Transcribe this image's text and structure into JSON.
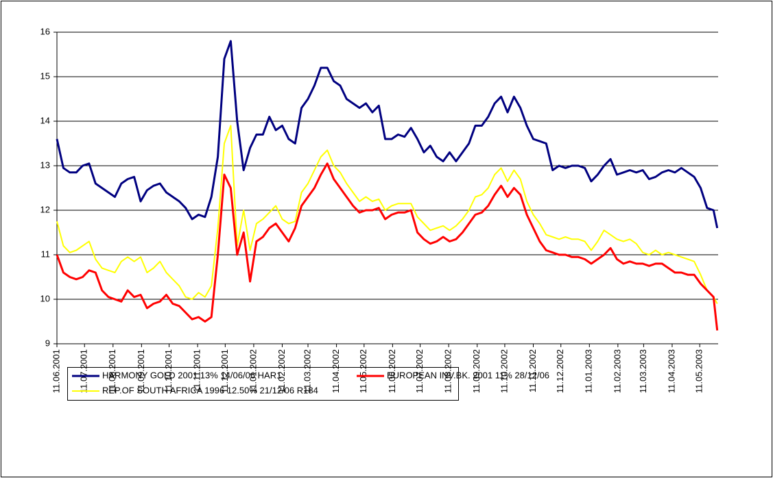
{
  "chart_data": {
    "type": "line",
    "x": [
      "2001-06-11",
      "2001-06-18",
      "2001-06-25",
      "2001-07-02",
      "2001-07-09",
      "2001-07-16",
      "2001-07-23",
      "2001-07-30",
      "2001-08-06",
      "2001-08-13",
      "2001-08-20",
      "2001-08-27",
      "2001-09-03",
      "2001-09-10",
      "2001-09-17",
      "2001-09-24",
      "2001-10-01",
      "2001-10-08",
      "2001-10-15",
      "2001-10-22",
      "2001-10-29",
      "2001-11-05",
      "2001-11-12",
      "2001-11-19",
      "2001-11-26",
      "2001-12-03",
      "2001-12-10",
      "2001-12-17",
      "2001-12-24",
      "2001-12-31",
      "2002-01-07",
      "2002-01-14",
      "2002-01-21",
      "2002-01-28",
      "2002-02-04",
      "2002-02-11",
      "2002-02-18",
      "2002-02-25",
      "2002-03-04",
      "2002-03-11",
      "2002-03-18",
      "2002-03-25",
      "2002-04-01",
      "2002-04-08",
      "2002-04-15",
      "2002-04-22",
      "2002-04-29",
      "2002-05-06",
      "2002-05-13",
      "2002-05-20",
      "2002-05-27",
      "2002-06-03",
      "2002-06-10",
      "2002-06-17",
      "2002-06-24",
      "2002-07-01",
      "2002-07-08",
      "2002-07-15",
      "2002-07-22",
      "2002-07-29",
      "2002-08-05",
      "2002-08-12",
      "2002-08-19",
      "2002-08-26",
      "2002-09-02",
      "2002-09-09",
      "2002-09-16",
      "2002-09-23",
      "2002-09-30",
      "2002-10-07",
      "2002-10-14",
      "2002-10-21",
      "2002-10-28",
      "2002-11-04",
      "2002-11-11",
      "2002-11-18",
      "2002-11-25",
      "2002-12-02",
      "2002-12-09",
      "2002-12-16",
      "2002-12-23",
      "2002-12-30",
      "2003-01-06",
      "2003-01-13",
      "2003-01-20",
      "2003-01-27",
      "2003-02-03",
      "2003-02-10",
      "2003-02-17",
      "2003-02-24",
      "2003-03-03",
      "2003-03-10",
      "2003-03-17",
      "2003-03-24",
      "2003-03-31",
      "2003-04-07",
      "2003-04-14",
      "2003-04-21",
      "2003-04-28",
      "2003-05-05",
      "2003-05-12",
      "2003-05-19",
      "2003-05-26",
      "2003-05-30"
    ],
    "series": [
      {
        "name": "HARMONY GOLD 2001 13% 14/06/06 HAR1",
        "color": "#000080",
        "values": [
          13.6,
          12.95,
          12.85,
          12.85,
          13.0,
          13.05,
          12.6,
          12.5,
          12.4,
          12.3,
          12.6,
          12.7,
          12.75,
          12.2,
          12.45,
          12.55,
          12.6,
          12.4,
          12.3,
          12.2,
          12.05,
          11.8,
          11.9,
          11.85,
          12.3,
          13.2,
          15.4,
          15.8,
          14.0,
          12.9,
          13.4,
          13.7,
          13.7,
          14.1,
          13.8,
          13.9,
          13.6,
          13.5,
          14.3,
          14.5,
          14.8,
          15.2,
          15.2,
          14.9,
          14.8,
          14.5,
          14.4,
          14.3,
          14.4,
          14.2,
          14.35,
          13.6,
          13.6,
          13.7,
          13.65,
          13.85,
          13.6,
          13.3,
          13.45,
          13.2,
          13.1,
          13.3,
          13.1,
          13.3,
          13.5,
          13.9,
          13.9,
          14.1,
          14.4,
          14.55,
          14.2,
          14.55,
          14.3,
          13.9,
          13.6,
          13.55,
          13.5,
          12.9,
          13.0,
          12.95,
          13.0,
          13.0,
          12.95,
          12.65,
          12.8,
          13.0,
          13.15,
          12.8,
          12.85,
          12.9,
          12.85,
          12.9,
          12.7,
          12.75,
          12.85,
          12.9,
          12.85,
          12.95,
          12.85,
          12.75,
          12.5,
          12.05,
          12.0,
          11.6
        ]
      },
      {
        "name": "EUROPEAN INV.BK. 2001 11% 28/12/06",
        "color": "#ff0000",
        "values": [
          11.0,
          10.6,
          10.5,
          10.45,
          10.5,
          10.65,
          10.6,
          10.2,
          10.05,
          10.0,
          9.95,
          10.2,
          10.05,
          10.1,
          9.8,
          9.9,
          9.95,
          10.1,
          9.9,
          9.85,
          9.7,
          9.55,
          9.6,
          9.5,
          9.6,
          11.0,
          12.8,
          12.5,
          11.0,
          11.5,
          10.4,
          11.3,
          11.4,
          11.6,
          11.7,
          11.5,
          11.3,
          11.6,
          12.1,
          12.3,
          12.5,
          12.8,
          13.05,
          12.7,
          12.5,
          12.3,
          12.1,
          11.95,
          12.0,
          12.0,
          12.05,
          11.8,
          11.9,
          11.95,
          11.95,
          12.0,
          11.5,
          11.35,
          11.25,
          11.3,
          11.4,
          11.3,
          11.35,
          11.5,
          11.7,
          11.9,
          11.95,
          12.1,
          12.35,
          12.55,
          12.3,
          12.5,
          12.35,
          11.9,
          11.6,
          11.3,
          11.1,
          11.05,
          11.0,
          11.0,
          10.95,
          10.95,
          10.9,
          10.8,
          10.9,
          11.0,
          11.15,
          10.9,
          10.8,
          10.85,
          10.8,
          10.8,
          10.75,
          10.8,
          10.8,
          10.7,
          10.6,
          10.6,
          10.55,
          10.55,
          10.35,
          10.2,
          10.05,
          9.3
        ]
      },
      {
        "name": "REP.OF SOUTH AFRICA 1996 12.50% 21/12/06 R184",
        "color": "#ffff00",
        "values": [
          11.75,
          11.2,
          11.05,
          11.1,
          11.2,
          11.3,
          10.9,
          10.7,
          10.65,
          10.6,
          10.85,
          10.95,
          10.85,
          10.95,
          10.6,
          10.7,
          10.85,
          10.6,
          10.45,
          10.3,
          10.05,
          10.0,
          10.15,
          10.05,
          10.3,
          11.6,
          13.5,
          13.9,
          11.2,
          12.0,
          11.1,
          11.7,
          11.8,
          11.95,
          12.1,
          11.8,
          11.7,
          11.75,
          12.4,
          12.6,
          12.9,
          13.2,
          13.35,
          13.0,
          12.85,
          12.6,
          12.4,
          12.2,
          12.3,
          12.2,
          12.25,
          12.0,
          12.1,
          12.15,
          12.15,
          12.15,
          11.85,
          11.7,
          11.55,
          11.6,
          11.65,
          11.55,
          11.65,
          11.8,
          12.0,
          12.3,
          12.35,
          12.5,
          12.8,
          12.95,
          12.65,
          12.9,
          12.7,
          12.2,
          11.9,
          11.7,
          11.45,
          11.4,
          11.35,
          11.4,
          11.35,
          11.35,
          11.3,
          11.1,
          11.3,
          11.55,
          11.45,
          11.35,
          11.3,
          11.35,
          11.25,
          11.05,
          11.0,
          11.1,
          11.0,
          11.05,
          11.0,
          10.95,
          10.9,
          10.85,
          10.55,
          10.2,
          10.05,
          9.9
        ]
      }
    ],
    "xlim": [
      "2001-06-11",
      "2003-05-31"
    ],
    "xticks": [
      {
        "value": "2001-06-11",
        "label": "11.06.2001"
      },
      {
        "value": "2001-07-11",
        "label": "11.07.2001"
      },
      {
        "value": "2001-08-11",
        "label": "11.08.2001"
      },
      {
        "value": "2001-09-11",
        "label": "11.09.2001"
      },
      {
        "value": "2001-10-11",
        "label": "11.10.2001"
      },
      {
        "value": "2001-11-11",
        "label": "11.11.2001"
      },
      {
        "value": "2001-12-11",
        "label": "11.12.2001"
      },
      {
        "value": "2002-01-11",
        "label": "11.01.2002"
      },
      {
        "value": "2002-02-11",
        "label": "11.02.2002"
      },
      {
        "value": "2002-03-11",
        "label": "11.03.2002"
      },
      {
        "value": "2002-04-11",
        "label": "11.04.2002"
      },
      {
        "value": "2002-05-11",
        "label": "11.05.2002"
      },
      {
        "value": "2002-06-11",
        "label": "11.06.2002"
      },
      {
        "value": "2002-07-11",
        "label": "11.07.2002"
      },
      {
        "value": "2002-08-11",
        "label": "11.08.2002"
      },
      {
        "value": "2002-09-11",
        "label": "11.09.2002"
      },
      {
        "value": "2002-10-11",
        "label": "11.10.2002"
      },
      {
        "value": "2002-11-11",
        "label": "11.11.2002"
      },
      {
        "value": "2002-12-11",
        "label": "11.12.2002"
      },
      {
        "value": "2003-01-11",
        "label": "11.01.2003"
      },
      {
        "value": "2003-02-11",
        "label": "11.02.2003"
      },
      {
        "value": "2003-03-11",
        "label": "11.03.2003"
      },
      {
        "value": "2003-04-11",
        "label": "11.04.2003"
      },
      {
        "value": "2003-05-11",
        "label": "11.05.2003"
      }
    ],
    "ylim": [
      9,
      16
    ],
    "yticks": [
      9,
      10,
      11,
      12,
      13,
      14,
      15,
      16
    ],
    "grid": true,
    "legend": "bottom"
  }
}
